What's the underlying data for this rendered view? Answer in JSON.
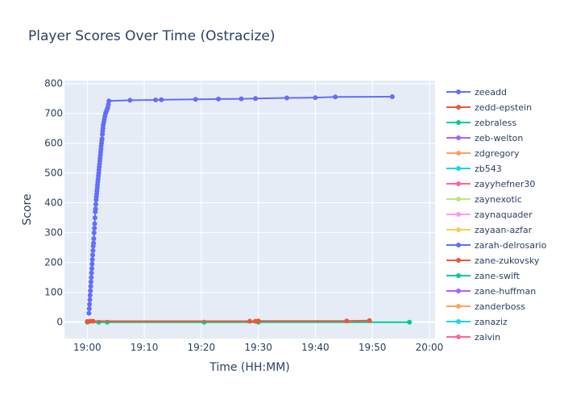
{
  "chart_data": {
    "type": "line",
    "title": "Player Scores Over Time (Ostracize)",
    "xlabel": "Time (HH:MM)",
    "ylabel": "Score",
    "x_unit": "minutes after 19:00",
    "xlim": [
      -4,
      61
    ],
    "ylim": [
      -55,
      810
    ],
    "x_ticks": [
      {
        "value": 0,
        "label": "19:00"
      },
      {
        "value": 10,
        "label": "19:10"
      },
      {
        "value": 20,
        "label": "19:20"
      },
      {
        "value": 30,
        "label": "19:30"
      },
      {
        "value": 40,
        "label": "19:40"
      },
      {
        "value": 50,
        "label": "19:50"
      },
      {
        "value": 60,
        "label": "20:00"
      }
    ],
    "y_ticks": [
      0,
      100,
      200,
      300,
      400,
      500,
      600,
      700,
      800
    ],
    "grid": true,
    "plot_bg": "#E5ECF6",
    "legend_position": "right",
    "series": [
      {
        "name": "zeeadd",
        "color": "#636EFA",
        "x": [
          0.3,
          0.35,
          0.4,
          0.45,
          0.5,
          0.55,
          0.6,
          0.65,
          0.7,
          0.75,
          0.8,
          0.85,
          0.9,
          0.95,
          1.0,
          1.05,
          1.1,
          1.15,
          1.2,
          1.25,
          1.3,
          1.35,
          1.4,
          1.45,
          1.5,
          1.55,
          1.6,
          1.65,
          1.7,
          1.75,
          1.8,
          1.85,
          1.9,
          1.95,
          2.0,
          2.05,
          2.1,
          2.15,
          2.2,
          2.25,
          2.3,
          2.35,
          2.4,
          2.45,
          2.5,
          2.55,
          2.6,
          2.65,
          2.7,
          2.75,
          2.8,
          2.9,
          3.0,
          3.1,
          3.2,
          3.3,
          3.4,
          3.5,
          3.6,
          3.7,
          3.8,
          7.5,
          12.0,
          13.0,
          19.0,
          23.0,
          27.0,
          29.5,
          35.0,
          40.0,
          43.5,
          53.5
        ],
        "y": [
          30,
          45,
          60,
          75,
          90,
          105,
          120,
          135,
          150,
          165,
          180,
          195,
          210,
          225,
          240,
          255,
          265,
          280,
          300,
          315,
          330,
          350,
          370,
          380,
          395,
          410,
          420,
          430,
          440,
          450,
          460,
          470,
          480,
          490,
          500,
          510,
          520,
          530,
          540,
          550,
          560,
          570,
          580,
          590,
          600,
          610,
          615,
          630,
          640,
          650,
          660,
          670,
          680,
          690,
          700,
          705,
          710,
          715,
          720,
          730,
          742,
          744,
          745,
          746,
          747,
          748,
          749,
          750,
          752,
          753,
          755,
          756
        ]
      },
      {
        "name": "zedd-epstein",
        "color": "#EF553B",
        "x": [
          0,
          0.5,
          1.0,
          28.5,
          29.5,
          30.0,
          45.5,
          49.5
        ],
        "y": [
          2,
          3,
          3,
          3,
          3,
          4,
          4,
          5
        ]
      },
      {
        "name": "zebraless",
        "color": "#00CC96",
        "x": [
          0,
          2.0,
          3.5,
          20.5,
          30.0,
          56.5
        ],
        "y": [
          0,
          0,
          0,
          0,
          0,
          0
        ]
      },
      {
        "name": "zeb-welton",
        "color": "#AB63FA",
        "x": [],
        "y": []
      },
      {
        "name": "zdgregory",
        "color": "#FFA15A",
        "x": [
          0.2
        ],
        "y": [
          1
        ]
      },
      {
        "name": "zb543",
        "color": "#19D3F3",
        "x": [],
        "y": []
      },
      {
        "name": "zayyhefner30",
        "color": "#FF6692",
        "x": [],
        "y": []
      },
      {
        "name": "zaynexotic",
        "color": "#B6E880",
        "x": [],
        "y": []
      },
      {
        "name": "zaynaquader",
        "color": "#FF97FF",
        "x": [],
        "y": []
      },
      {
        "name": "zayaan-azfar",
        "color": "#FECB52",
        "x": [],
        "y": []
      },
      {
        "name": "zarah-delrosario",
        "color": "#636EFA",
        "x": [],
        "y": []
      },
      {
        "name": "zane-zukovsky",
        "color": "#EF553B",
        "x": [],
        "y": []
      },
      {
        "name": "zane-swift",
        "color": "#00CC96",
        "x": [],
        "y": []
      },
      {
        "name": "zane-huffman",
        "color": "#AB63FA",
        "x": [],
        "y": []
      },
      {
        "name": "zanderboss",
        "color": "#FFA15A",
        "x": [],
        "y": []
      },
      {
        "name": "zanaziz",
        "color": "#19D3F3",
        "x": [],
        "y": []
      },
      {
        "name": "zalvin",
        "color": "#FF6692",
        "x": [],
        "y": []
      }
    ]
  }
}
